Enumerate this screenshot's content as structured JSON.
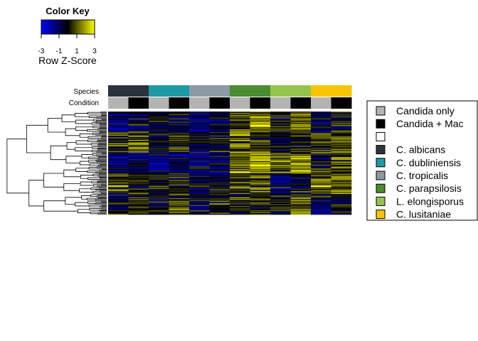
{
  "chart_data": {
    "type": "heatmap",
    "color_key": {
      "title": "Color Key",
      "label": "Row Z-Score",
      "ticks": [
        "-3",
        "-1",
        "1",
        "3"
      ],
      "range": [
        -3,
        3
      ],
      "gradient": [
        "#0000ff",
        "#000000",
        "#ffff00"
      ]
    },
    "annotation_rows": [
      {
        "label": "Species"
      },
      {
        "label": "Condition"
      }
    ],
    "columns": [
      {
        "species": "C. albicans",
        "condition": "Candida only"
      },
      {
        "species": "C. albicans",
        "condition": "Candida + Mac"
      },
      {
        "species": "C. dubliniensis",
        "condition": "Candida only"
      },
      {
        "species": "C. dubliniensis",
        "condition": "Candida + Mac"
      },
      {
        "species": "C. tropicalis",
        "condition": "Candida only"
      },
      {
        "species": "C. tropicalis",
        "condition": "Candida + Mac"
      },
      {
        "species": "C. parapsilosis",
        "condition": "Candida only"
      },
      {
        "species": "C. parapsilosis",
        "condition": "Candida + Mac"
      },
      {
        "species": "L. elongisporus",
        "condition": "Candida only"
      },
      {
        "species": "L. elongisporus",
        "condition": "Candida + Mac"
      },
      {
        "species": "C. lusitaniae",
        "condition": "Candida only"
      },
      {
        "species": "C. lusitaniae",
        "condition": "Candida + Mac"
      }
    ],
    "legend": {
      "placement": "right",
      "items": [
        {
          "label": "Candida only",
          "color": "#b3b3b3"
        },
        {
          "label": "Candida + Mac",
          "color": "#000000"
        },
        {
          "label": "",
          "color": "#ffffff"
        },
        {
          "label": "C. albicans",
          "color": "#2b333c"
        },
        {
          "label": "C. dubliniensis",
          "color": "#1f9aa5"
        },
        {
          "label": "C. tropicalis",
          "color": "#8c9aa3"
        },
        {
          "label": "C. parapsilosis",
          "color": "#4a8c31"
        },
        {
          "label": "L. elongisporus",
          "color": "#96c34f"
        },
        {
          "label": "C. lusitaniae",
          "color": "#f7c500"
        }
      ]
    },
    "row_count": 120,
    "column_profiles": [
      [
        -0.6,
        -0.3,
        -0.4,
        -0.2,
        -0.5,
        -0.4,
        0.5,
        0.8,
        0.1,
        0.4,
        -0.3,
        0.1
      ],
      [
        0.2,
        0.4,
        -0.2,
        0.3,
        -0.3,
        0.1,
        0.6,
        0.3,
        -0.2,
        0.1,
        0.4,
        0.5
      ],
      [
        -0.8,
        -0.5,
        -0.7,
        -0.6,
        -0.6,
        -0.5,
        0.6,
        1.0,
        0.4,
        0.7,
        0.0,
        0.3
      ],
      [
        0.3,
        0.2,
        0.1,
        0.0,
        -0.4,
        -0.2,
        0.2,
        0.5,
        -0.5,
        -0.2,
        0.6,
        0.7
      ],
      [
        -0.2,
        0.3,
        -0.1,
        0.4,
        -0.2,
        0.2,
        0.1,
        0.3,
        0.0,
        0.5,
        -0.4,
        -0.1
      ]
    ]
  }
}
